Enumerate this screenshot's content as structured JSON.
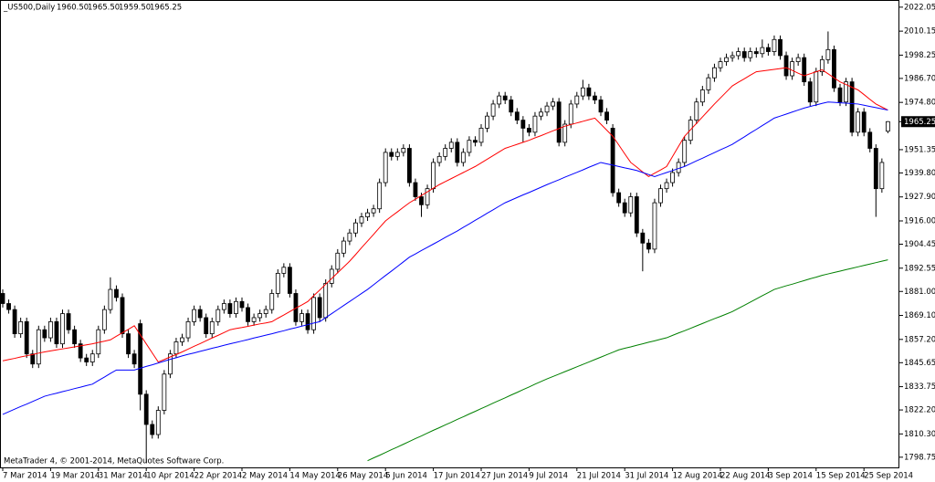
{
  "header": {
    "symbol": "_US500,Daily",
    "ohlc": [
      {
        "value": 1960.5,
        "label": "1960.50"
      },
      {
        "value": 1965.5,
        "label": "1965.50"
      },
      {
        "value": 1959.5,
        "label": "1959.50"
      },
      {
        "value": 1965.25,
        "label": "1965.25"
      }
    ]
  },
  "footer": "MetaTrader 4, © 2001-2014, MetaQuotes Software Corp.",
  "chart_data": {
    "type": "candlestick",
    "categories": [
      "7 Mar 2014",
      null,
      null,
      null,
      null,
      null,
      null,
      null,
      "19 Mar 2014",
      null,
      null,
      null,
      null,
      null,
      null,
      null,
      "31 Mar 2014",
      null,
      null,
      null,
      null,
      null,
      null,
      null,
      "10 Apr 2014",
      null,
      null,
      null,
      null,
      null,
      null,
      null,
      "22 Apr 2014",
      null,
      null,
      null,
      null,
      null,
      null,
      null,
      "2 May 2014",
      null,
      null,
      null,
      null,
      null,
      null,
      null,
      "14 May 2014",
      null,
      null,
      null,
      null,
      null,
      null,
      null,
      "26 May 2014",
      null,
      null,
      null,
      null,
      null,
      null,
      null,
      "5 Jun 2014",
      null,
      null,
      null,
      null,
      null,
      null,
      null,
      "17 Jun 2014",
      null,
      null,
      null,
      null,
      null,
      null,
      null,
      "27 Jun 2014",
      null,
      null,
      null,
      null,
      null,
      null,
      null,
      "9 Jul 2014",
      null,
      null,
      null,
      null,
      null,
      null,
      null,
      "21 Jul 2014",
      null,
      null,
      null,
      null,
      null,
      null,
      null,
      "31 Jul 2014",
      null,
      null,
      null,
      null,
      null,
      null,
      null,
      "12 Aug 2014",
      null,
      null,
      null,
      null,
      null,
      null,
      null,
      "22 Aug 2014",
      null,
      null,
      null,
      null,
      null,
      null,
      null,
      "3 Sep 2014",
      null,
      null,
      null,
      null,
      null,
      null,
      null,
      "15 Sep 2014",
      null,
      null,
      null,
      null,
      null,
      null,
      null,
      "25 Sep 2014",
      null,
      null,
      null,
      null
    ],
    "open": [
      1880,
      1875,
      1872,
      1860,
      1866,
      1850,
      1845,
      1862,
      1858,
      1866,
      1855,
      1870,
      1862,
      1855,
      1848,
      1846,
      1850,
      1862,
      1872,
      1882,
      1878,
      1860,
      1850,
      1865,
      1830,
      1815,
      1810,
      1822,
      1840,
      1850,
      1856,
      1858,
      1866,
      1872,
      1868,
      1860,
      1866,
      1872,
      1875,
      1870,
      1876,
      1873,
      1866,
      1868,
      1870,
      1872,
      1880,
      1890,
      1893,
      1880,
      1866,
      1870,
      1862,
      1878,
      1868,
      1885,
      1892,
      1900,
      1906,
      1910,
      1915,
      1918,
      1920,
      1922,
      1935,
      1950,
      1948,
      1950,
      1952,
      1935,
      1928,
      1924,
      1932,
      1945,
      1948,
      1952,
      1955,
      1945,
      1950,
      1956,
      1955,
      1962,
      1968,
      1974,
      1978,
      1976,
      1970,
      1966,
      1962,
      1960,
      1968,
      1970,
      1973,
      1975,
      1955,
      1964,
      1974,
      1978,
      1982,
      1978,
      1976,
      1970,
      1962,
      1930,
      1925,
      1920,
      1928,
      1910,
      1905,
      1902,
      1925,
      1932,
      1935,
      1940,
      1945,
      1956,
      1966,
      1975,
      1981,
      1987,
      1992,
      1995,
      1997,
      1998,
      2000,
      1997,
      2000,
      1999,
      2002,
      2000,
      2006,
      1998,
      1988,
      1995,
      1997,
      1985,
      1975,
      1990,
      1996,
      2001,
      1982,
      1975,
      1985,
      1960,
      1970,
      1960,
      1952,
      1932,
      1960.5
    ],
    "high": [
      1882,
      1877,
      1874,
      1868,
      1868,
      1852,
      1864,
      1864,
      1868,
      1868,
      1872,
      1872,
      1864,
      1857,
      1850,
      1852,
      1864,
      1874,
      1888,
      1884,
      1880,
      1862,
      1852,
      1867,
      1832,
      1817,
      1824,
      1842,
      1852,
      1858,
      1860,
      1868,
      1874,
      1874,
      1870,
      1868,
      1874,
      1877,
      1877,
      1878,
      1878,
      1875,
      1870,
      1872,
      1874,
      1882,
      1892,
      1895,
      1895,
      1882,
      1872,
      1872,
      1880,
      1880,
      1887,
      1894,
      1902,
      1908,
      1912,
      1917,
      1920,
      1922,
      1924,
      1937,
      1952,
      1952,
      1952,
      1954,
      1954,
      1937,
      1930,
      1934,
      1947,
      1950,
      1954,
      1957,
      1957,
      1952,
      1958,
      1958,
      1964,
      1970,
      1976,
      1980,
      1980,
      1978,
      1972,
      1968,
      1964,
      1970,
      1972,
      1975,
      1977,
      1977,
      1966,
      1976,
      1980,
      1986,
      1984,
      1980,
      1978,
      1972,
      1964,
      1932,
      1927,
      1930,
      1930,
      1912,
      1907,
      1927,
      1934,
      1937,
      1942,
      1947,
      1958,
      1968,
      1977,
      1983,
      1989,
      1994,
      1997,
      1999,
      2000,
      2002,
      2002,
      2002,
      2002,
      2006,
      2004,
      2008,
      2008,
      2000,
      1997,
      1999,
      1999,
      1987,
      1992,
      1998,
      2010,
      2003,
      1984,
      1987,
      1987,
      1972,
      1972,
      1962,
      1954,
      1947,
      1965.5
    ],
    "low": [
      1873,
      1870,
      1858,
      1858,
      1848,
      1843,
      1843,
      1856,
      1856,
      1853,
      1853,
      1860,
      1853,
      1846,
      1844,
      1844,
      1848,
      1860,
      1870,
      1876,
      1858,
      1848,
      1843,
      1822,
      1796,
      1808,
      1808,
      1820,
      1838,
      1848,
      1854,
      1856,
      1864,
      1866,
      1858,
      1858,
      1864,
      1870,
      1868,
      1868,
      1871,
      1864,
      1864,
      1866,
      1868,
      1870,
      1878,
      1888,
      1878,
      1864,
      1864,
      1860,
      1860,
      1866,
      1866,
      1883,
      1890,
      1898,
      1904,
      1908,
      1913,
      1916,
      1918,
      1920,
      1933,
      1946,
      1946,
      1948,
      1933,
      1926,
      1918,
      1922,
      1930,
      1943,
      1946,
      1950,
      1943,
      1943,
      1948,
      1953,
      1953,
      1960,
      1966,
      1972,
      1974,
      1968,
      1964,
      1955,
      1958,
      1958,
      1966,
      1968,
      1971,
      1953,
      1953,
      1962,
      1972,
      1976,
      1976,
      1974,
      1968,
      1964,
      1928,
      1923,
      1918,
      1918,
      1908,
      1891,
      1900,
      1900,
      1923,
      1930,
      1933,
      1938,
      1943,
      1954,
      1964,
      1973,
      1979,
      1985,
      1990,
      1993,
      1995,
      1996,
      1995,
      1995,
      1997,
      1997,
      1998,
      1998,
      1996,
      1986,
      1986,
      1993,
      1983,
      1973,
      1973,
      1988,
      1994,
      1980,
      1973,
      1973,
      1958,
      1958,
      1958,
      1950,
      1918,
      1930,
      1959.5
    ],
    "close": [
      1875,
      1872,
      1860,
      1866,
      1850,
      1845,
      1862,
      1858,
      1866,
      1855,
      1870,
      1862,
      1855,
      1848,
      1846,
      1850,
      1862,
      1872,
      1882,
      1878,
      1860,
      1850,
      1845,
      1830,
      1815,
      1810,
      1822,
      1840,
      1850,
      1856,
      1858,
      1866,
      1872,
      1868,
      1860,
      1866,
      1872,
      1875,
      1870,
      1876,
      1873,
      1866,
      1868,
      1870,
      1872,
      1880,
      1890,
      1893,
      1880,
      1866,
      1870,
      1862,
      1878,
      1868,
      1885,
      1892,
      1900,
      1906,
      1910,
      1915,
      1918,
      1920,
      1922,
      1935,
      1950,
      1948,
      1950,
      1952,
      1935,
      1928,
      1924,
      1932,
      1945,
      1948,
      1952,
      1955,
      1945,
      1950,
      1956,
      1955,
      1962,
      1968,
      1974,
      1978,
      1976,
      1970,
      1966,
      1962,
      1960,
      1968,
      1970,
      1973,
      1975,
      1955,
      1964,
      1974,
      1978,
      1982,
      1978,
      1976,
      1970,
      1966,
      1930,
      1925,
      1920,
      1928,
      1910,
      1905,
      1902,
      1925,
      1932,
      1935,
      1940,
      1945,
      1956,
      1966,
      1975,
      1981,
      1987,
      1992,
      1995,
      1997,
      1998,
      2000,
      1997,
      2000,
      1999,
      2002,
      2000,
      2006,
      1998,
      1988,
      1995,
      1997,
      1985,
      1975,
      1990,
      1996,
      2001,
      1982,
      1975,
      1985,
      1960,
      1970,
      1960,
      1952,
      1932,
      1945,
      1965.25
    ],
    "lines": [
      {
        "color": "#ff0000",
        "values": [
          1846.6,
          1847.2,
          1847.8,
          1848.5,
          1849.1,
          1849.7,
          1850.4,
          1851,
          1851.5,
          1852,
          1852.5,
          1853,
          1853.5,
          1854,
          1854.5,
          1855,
          1855.7,
          1856.3,
          1857,
          1858.8,
          1860.5,
          1862.2,
          1864,
          1859.5,
          1855,
          1850.5,
          1846,
          1847.2,
          1848.5,
          1849.7,
          1851,
          1852.4,
          1853.8,
          1855.1,
          1856.5,
          1857.9,
          1859.2,
          1860.6,
          1862,
          1862.6,
          1863.1,
          1863.7,
          1864.3,
          1864.9,
          1865.4,
          1866,
          1867.7,
          1869.3,
          1871,
          1872.7,
          1874.3,
          1876,
          1878.9,
          1881.7,
          1884.6,
          1887.4,
          1890.3,
          1893.1,
          1896,
          1899.3,
          1902.7,
          1906,
          1909.3,
          1912.7,
          1916,
          1918.3,
          1920.5,
          1922.8,
          1925,
          1926.8,
          1928.6,
          1930.4,
          1932.2,
          1934,
          1935.5,
          1937,
          1938.5,
          1940,
          1941.5,
          1943,
          1944.8,
          1946.6,
          1948.4,
          1950.2,
          1952,
          1953,
          1954,
          1955,
          1956,
          1957.2,
          1958.3,
          1959.5,
          1960.7,
          1961.8,
          1963,
          1963.8,
          1964.6,
          1965.4,
          1966.2,
          1967,
          1964,
          1961,
          1958,
          1953.7,
          1949.3,
          1945,
          1942.7,
          1940.3,
          1938,
          1939.7,
          1941.3,
          1943,
          1948,
          1953,
          1958,
          1961.2,
          1964.4,
          1967.6,
          1970.8,
          1974,
          1977,
          1980,
          1983,
          1984.8,
          1986.5,
          1988.3,
          1990,
          1990.4,
          1990.8,
          1991.2,
          1991.6,
          1992,
          1990.7,
          1989.3,
          1988,
          1989,
          1990,
          1991,
          1989,
          1987,
          1985,
          1983.7,
          1982.3,
          1981,
          1978.7,
          1976.3,
          1974,
          1972.5,
          1971
        ]
      },
      {
        "color": "#0000ff",
        "values": [
          1820,
          1821.3,
          1822.6,
          1823.9,
          1825.1,
          1826.4,
          1827.7,
          1829,
          1829.8,
          1830.5,
          1831.3,
          1832,
          1832.8,
          1833.5,
          1834.3,
          1835,
          1836.8,
          1838.5,
          1840.3,
          1842,
          1842,
          1842,
          1842,
          1842.9,
          1843.8,
          1844.6,
          1845.5,
          1846.4,
          1847.3,
          1848.1,
          1849,
          1849.8,
          1850.5,
          1851.3,
          1852,
          1852.8,
          1853.5,
          1854.3,
          1855,
          1855.7,
          1856.4,
          1857.1,
          1857.9,
          1858.6,
          1859.3,
          1860,
          1860.8,
          1861.5,
          1862.3,
          1863,
          1863.8,
          1864.5,
          1865.3,
          1866,
          1868,
          1870,
          1872,
          1874,
          1876,
          1878,
          1880,
          1882,
          1884.3,
          1886.6,
          1888.9,
          1891.1,
          1893.4,
          1895.7,
          1898,
          1899.6,
          1901.3,
          1902.9,
          1904.5,
          1906.1,
          1907.8,
          1909.4,
          1911,
          1912.8,
          1914.5,
          1916.3,
          1918,
          1919.8,
          1921.5,
          1923.3,
          1925,
          1926.3,
          1927.6,
          1928.9,
          1930.1,
          1931.4,
          1932.7,
          1934,
          1935.2,
          1936.4,
          1937.7,
          1938.9,
          1940.1,
          1941.3,
          1942.6,
          1943.8,
          1945,
          1944.3,
          1943.7,
          1943,
          1942.3,
          1941.7,
          1941,
          1940,
          1939,
          1938,
          1939,
          1940,
          1941,
          1942,
          1943,
          1944.4,
          1945.8,
          1947.1,
          1948.5,
          1949.9,
          1951.3,
          1952.6,
          1954,
          1955.9,
          1957.7,
          1959.6,
          1961.4,
          1963.3,
          1965.1,
          1967,
          1968,
          1969,
          1970,
          1971,
          1972,
          1972.8,
          1973.5,
          1974.3,
          1975,
          1974.8,
          1974.6,
          1974.4,
          1974.2,
          1974,
          1973.4,
          1972.8,
          1972.2,
          1971.6,
          1971
        ]
      },
      {
        "color": "#008000",
        "values": [
          null,
          null,
          null,
          null,
          null,
          null,
          null,
          null,
          null,
          null,
          null,
          null,
          null,
          null,
          null,
          null,
          null,
          null,
          null,
          null,
          null,
          null,
          null,
          null,
          null,
          null,
          null,
          null,
          null,
          null,
          null,
          null,
          null,
          null,
          null,
          null,
          null,
          null,
          null,
          null,
          null,
          null,
          null,
          null,
          null,
          null,
          null,
          null,
          null,
          null,
          null,
          null,
          null,
          null,
          null,
          null,
          null,
          null,
          null,
          null,
          null,
          1797,
          1798.4,
          1799.7,
          1801.1,
          1802.5,
          1803.8,
          1805.2,
          1806.6,
          1808,
          1809.3,
          1810.7,
          1812.1,
          1813.4,
          1814.8,
          1816.1,
          1817.5,
          1818.8,
          1820.2,
          1821.5,
          1822.9,
          1824.2,
          1825.6,
          1826.9,
          1828.2,
          1829.6,
          1830.9,
          1832.3,
          1833.6,
          1835,
          1836.3,
          1837.6,
          1838.8,
          1840,
          1841.2,
          1842.4,
          1843.6,
          1844.8,
          1846,
          1847.2,
          1848.4,
          1849.6,
          1850.8,
          1852,
          1852.8,
          1853.5,
          1854.3,
          1855,
          1855.8,
          1856.5,
          1857.3,
          1858,
          1859.2,
          1860.4,
          1861.5,
          1862.7,
          1863.9,
          1865.1,
          1866.3,
          1867.5,
          1868.6,
          1869.8,
          1871,
          1872.6,
          1874.1,
          1875.7,
          1877.3,
          1878.9,
          1880.4,
          1882,
          1882.9,
          1883.8,
          1884.6,
          1885.5,
          1886.4,
          1887.3,
          1888.1,
          1889,
          1889.7,
          1890.4,
          1891.1,
          1891.8,
          1892.5,
          1893.2,
          1893.9,
          1894.6,
          1895.3,
          1896,
          1896.7
        ]
      }
    ],
    "ylim": [
      1793.7,
      2024.7
    ],
    "yticks": [
      {
        "value": 2022.05,
        "label": "2022.05"
      },
      {
        "value": 2010.15,
        "label": "2010.15"
      },
      {
        "value": 1998.25,
        "label": "1998.25"
      },
      {
        "value": 1986.7,
        "label": "1986.70"
      },
      {
        "value": 1974.8,
        "label": "1974.80"
      },
      {
        "value": 1951.35,
        "label": "1951.35"
      },
      {
        "value": 1939.8,
        "label": "1939.80"
      },
      {
        "value": 1927.9,
        "label": "1927.90"
      },
      {
        "value": 1916,
        "label": "1916.00"
      },
      {
        "value": 1904.45,
        "label": "1904.45"
      },
      {
        "value": 1892.55,
        "label": "1892.55"
      },
      {
        "value": 1881,
        "label": "1881.00"
      },
      {
        "value": 1869.1,
        "label": "1869.10"
      },
      {
        "value": 1857.2,
        "label": "1857.20"
      },
      {
        "value": 1845.65,
        "label": "1845.65"
      },
      {
        "value": 1833.75,
        "label": "1833.75"
      },
      {
        "value": 1822.2,
        "label": "1822.20"
      },
      {
        "value": 1810.3,
        "label": "1810.30"
      },
      {
        "value": 1798.75,
        "label": "1798.75"
      }
    ],
    "current_price": {
      "value": 1965.25,
      "label": "1965.25"
    },
    "bull_color": "#ffffff",
    "bear_color": "#000000"
  }
}
